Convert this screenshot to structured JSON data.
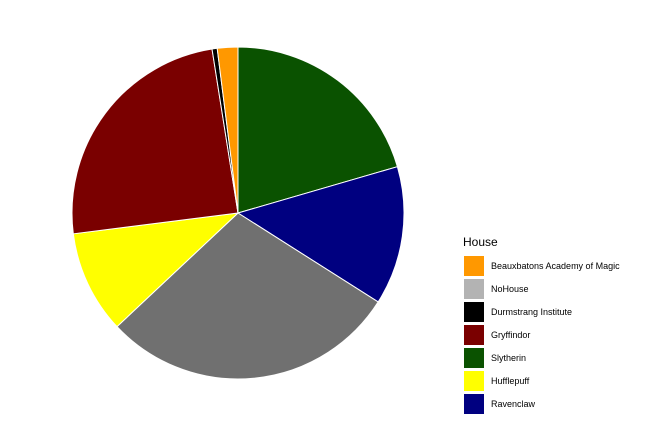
{
  "chart_data": {
    "type": "pie",
    "legend_title": "House",
    "legend_position": "right",
    "start": "12 o'clock",
    "direction": "clockwise",
    "slices": [
      {
        "label": "Slytherin",
        "value": 20.5,
        "color": "#0A5200"
      },
      {
        "label": "Ravenclaw",
        "value": 13.5,
        "color": "#000080"
      },
      {
        "label": "NoHouse",
        "value": 29.0,
        "color": "#707070"
      },
      {
        "label": "Hufflepuff",
        "value": 10.0,
        "color": "#FFFF00"
      },
      {
        "label": "Gryffindor",
        "value": 24.5,
        "color": "#7A0000"
      },
      {
        "label": "Durmstrang Institute",
        "value": 0.5,
        "color": "#000000"
      },
      {
        "label": "Beauxbatons Academy of Magic",
        "value": 2.0,
        "color": "#FF9800"
      }
    ],
    "legend_order": [
      "Beauxbatons Academy of Magic",
      "NoHouse",
      "Durmstrang Institute",
      "Gryffindor",
      "Slytherin",
      "Hufflepuff",
      "Ravenclaw"
    ]
  }
}
